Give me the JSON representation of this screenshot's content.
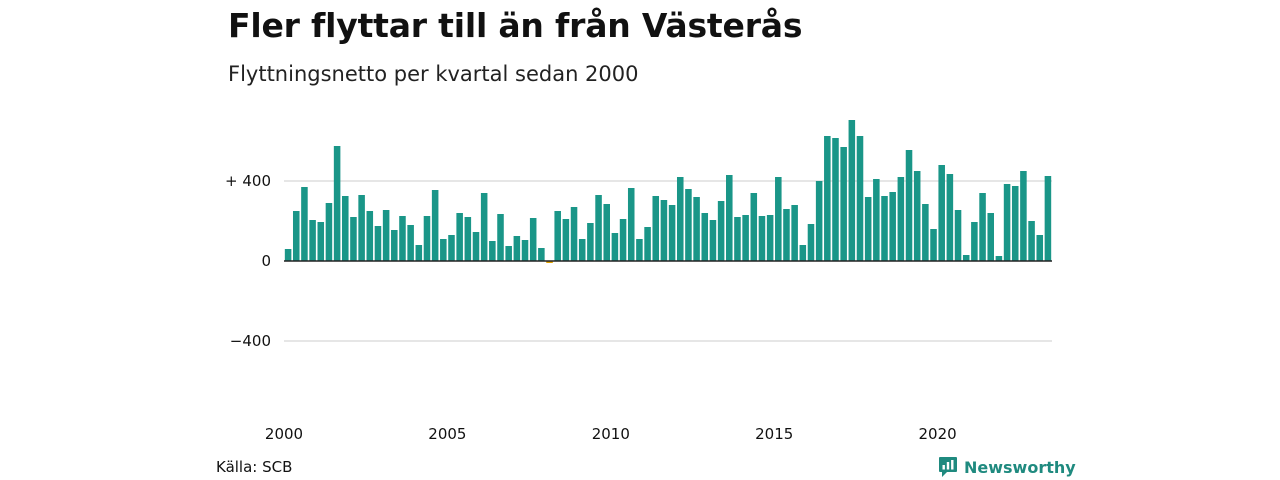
{
  "title": "Fler flyttar till än från Västerås",
  "subtitle": "Flyttningsnetto per kvartal sedan 2000",
  "source": "Källa: SCB",
  "brand": "Newsworthy",
  "colors": {
    "positive": "#1a9688",
    "negative": "#e0a300",
    "grid": "#dddddd",
    "axis": "#222222",
    "brand": "#1f8a7f"
  },
  "chart_data": {
    "type": "bar",
    "title": "Fler flyttar till än från Västerås",
    "subtitle": "Flyttningsnetto per kvartal sedan 2000",
    "ylim": [
      -600,
      720
    ],
    "y_ticks": [
      {
        "value": 400,
        "label": "+ 400"
      },
      {
        "value": 0,
        "label": "0"
      },
      {
        "value": -400,
        "label": "−400"
      }
    ],
    "x_ticks": [
      "2000",
      "2005",
      "2010",
      "2015",
      "2020"
    ],
    "grid": true,
    "start_year": 2000,
    "values": [
      60,
      250,
      370,
      205,
      195,
      290,
      575,
      325,
      220,
      330,
      250,
      175,
      255,
      155,
      225,
      180,
      80,
      225,
      355,
      110,
      130,
      240,
      220,
      145,
      340,
      100,
      235,
      75,
      125,
      105,
      215,
      65,
      -10,
      250,
      210,
      270,
      110,
      190,
      330,
      285,
      140,
      210,
      365,
      110,
      170,
      325,
      305,
      280,
      420,
      360,
      320,
      240,
      205,
      300,
      430,
      220,
      230,
      340,
      225,
      230,
      420,
      260,
      280,
      80,
      185,
      400,
      625,
      615,
      570,
      705,
      625,
      320,
      410,
      325,
      345,
      420,
      555,
      450,
      285,
      160,
      480,
      435,
      255,
      30,
      195,
      340,
      240,
      25,
      385,
      375,
      450,
      200,
      130,
      425
    ]
  }
}
